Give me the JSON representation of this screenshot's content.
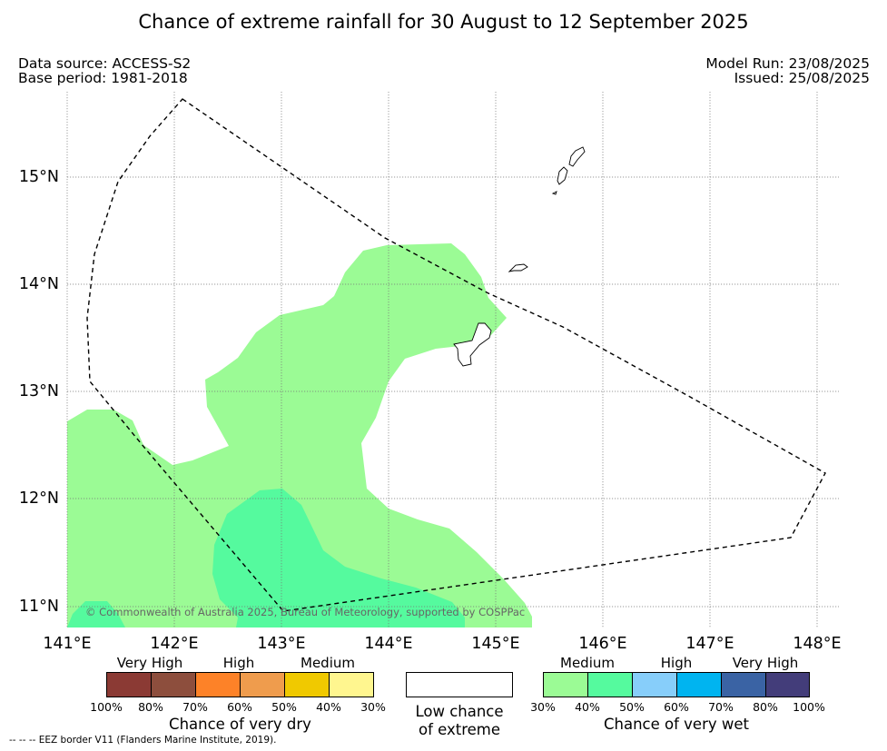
{
  "title": "Chance of extreme rainfall for 30 August to 12 September 2025",
  "data_source": "Data source: ACCESS-S2",
  "base_period": "Base period: 1981-2018",
  "model_run": "Model Run: 23/08/2025",
  "issued": "Issued: 25/08/2025",
  "copyright": "© Commonwealth of Australia 2025, Bureau of Meteorology, supported by COSPPac",
  "map": {
    "lon_range": [
      141,
      148
    ],
    "lat_range": [
      10.8,
      15.8
    ],
    "lon_ticks": [
      "141°E",
      "142°E",
      "143°E",
      "144°E",
      "145°E",
      "146°E",
      "147°E",
      "148°E"
    ],
    "lat_ticks": [
      "11°N",
      "12°N",
      "13°N",
      "14°N",
      "15°N"
    ],
    "gridlines": true,
    "regions": [
      {
        "category": "Medium",
        "range": "30%-40%",
        "tendency": "wet",
        "color": "#9BFB95"
      },
      {
        "category": "Medium",
        "range": "40%-50%",
        "tendency": "wet",
        "color": "#55FA9E"
      }
    ],
    "eez_border": "dashed",
    "land": "Mariana Islands (outline)"
  },
  "legend": {
    "dry": {
      "categories": [
        "Very High",
        "High",
        "Medium"
      ],
      "colors": [
        "#8B3A34",
        "#8D4E3D",
        "#FD8228",
        "#EF9C4D",
        "#F0C900",
        "#FFF68F"
      ],
      "ticks": [
        "100%",
        "80%",
        "70%",
        "60%",
        "50%",
        "40%",
        "30%"
      ],
      "caption": "Chance of very dry"
    },
    "low": {
      "caption_line1": "Low chance",
      "caption_line2": "of extreme",
      "color": "#FFFFFF"
    },
    "wet": {
      "categories": [
        "Medium",
        "High",
        "Very High"
      ],
      "colors": [
        "#9BFB95",
        "#55FA9E",
        "#87CEFA",
        "#00B4F0",
        "#3A63A4",
        "#433D7A"
      ],
      "ticks": [
        "30%",
        "40%",
        "50%",
        "60%",
        "70%",
        "80%",
        "100%"
      ],
      "caption": "Chance of very wet"
    }
  },
  "footnote": "--  --  -- EEZ border V11 (Flanders Marine Institute, 2019)."
}
